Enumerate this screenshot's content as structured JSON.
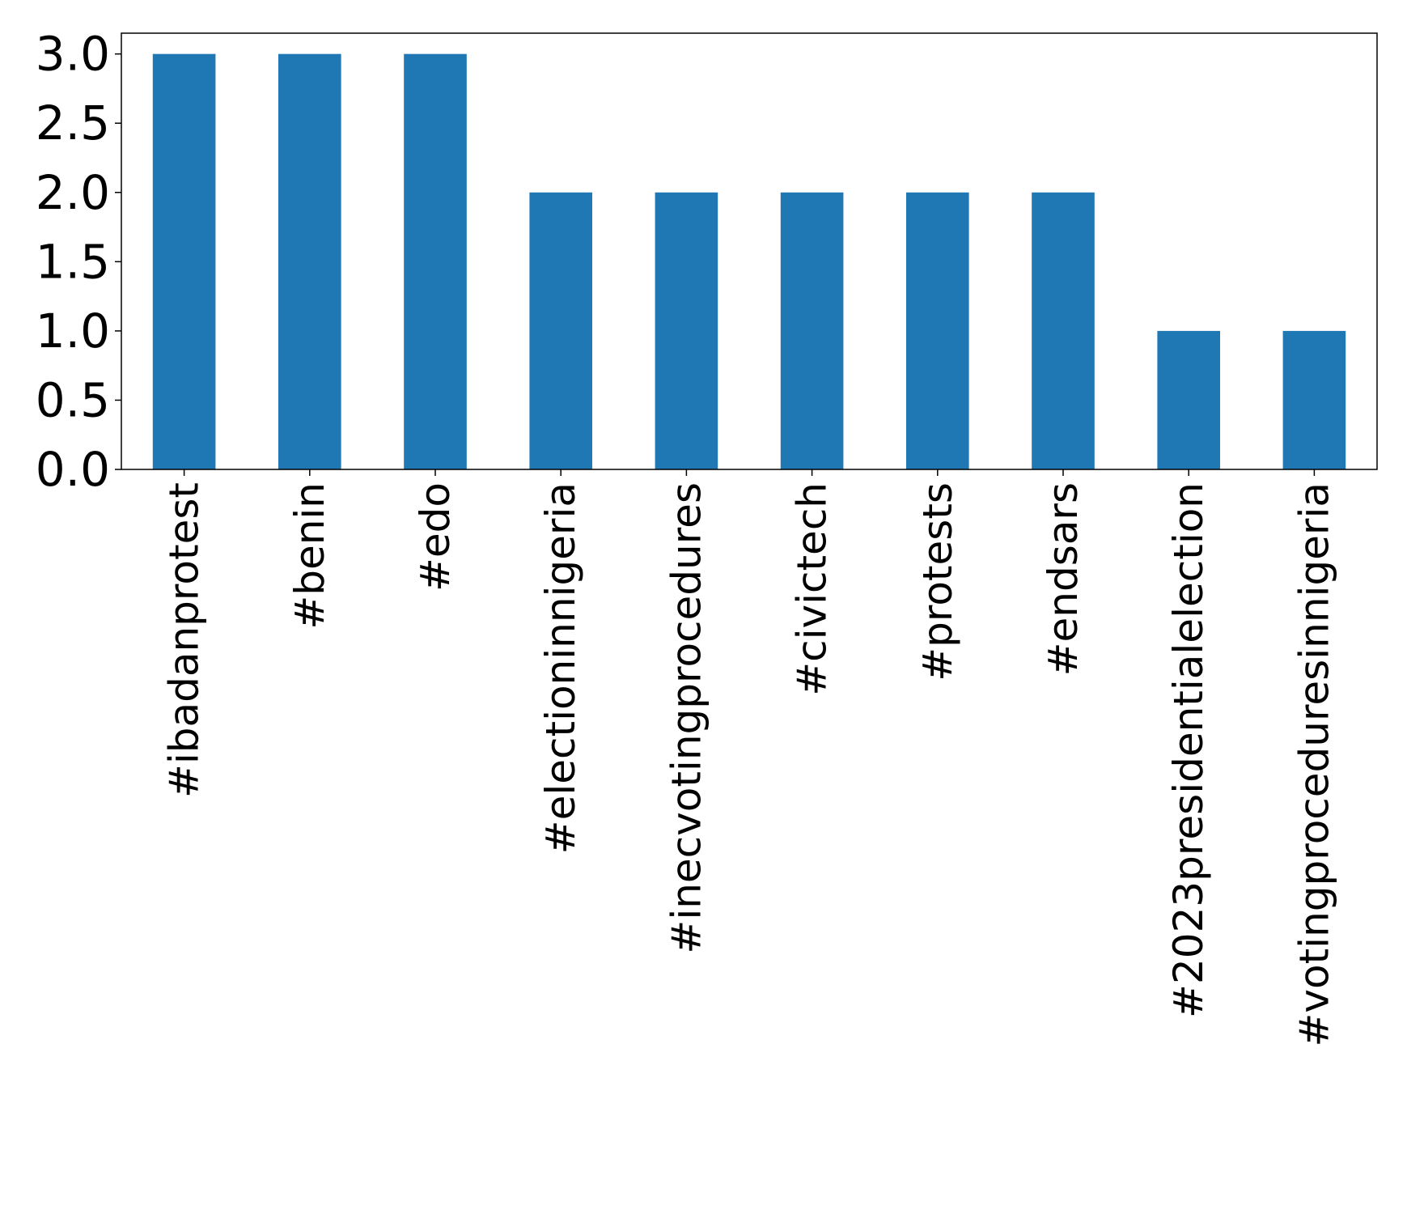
{
  "chart_data": {
    "type": "bar",
    "title": "",
    "xlabel": "",
    "ylabel": "",
    "categories": [
      "#ibadanprotest",
      "#benin",
      "#edo",
      "#electioninnigeria",
      "#inecvotingprocedures",
      "#civictech",
      "#protests",
      "#endsars",
      "#2023presidentialelection",
      "#votingproceduresinnigeria"
    ],
    "values": [
      3,
      3,
      3,
      2,
      2,
      2,
      2,
      2,
      1,
      1
    ],
    "ylim": [
      0,
      3.15
    ],
    "yticks": [
      "0.0",
      "0.5",
      "1.0",
      "1.5",
      "2.0",
      "2.5",
      "3.0"
    ],
    "bar_color": "#1f77b4",
    "grid": false,
    "legend": "none"
  }
}
